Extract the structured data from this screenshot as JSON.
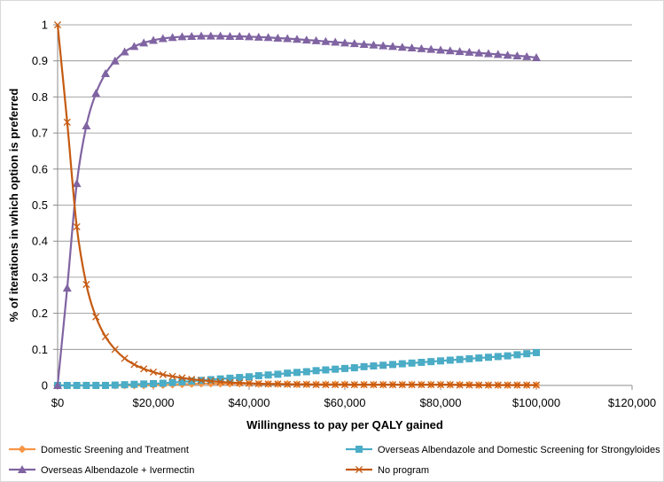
{
  "chart_data": {
    "type": "line",
    "title": "",
    "xlabel": "Willingness to pay per QALY gained",
    "ylabel": "% of iterations in which option is preferred",
    "xlim": [
      0,
      120000
    ],
    "ylim": [
      0,
      1
    ],
    "x_ticks": [
      0,
      20000,
      40000,
      60000,
      80000,
      100000,
      120000
    ],
    "x_tick_labels": [
      "$0",
      "$20,000",
      "$40,000",
      "$60,000",
      "$80,000",
      "$100,000",
      "$120,000"
    ],
    "y_ticks": [
      0,
      0.1,
      0.2,
      0.3,
      0.4,
      0.5,
      0.6,
      0.7,
      0.8,
      0.9,
      1
    ],
    "y_tick_labels": [
      "0",
      "0.1",
      "0.2",
      "0.3",
      "0.4",
      "0.5",
      "0.6",
      "0.7",
      "0.8",
      "0.9",
      "1"
    ],
    "grid": "horizontal",
    "legend_position": "bottom",
    "x": [
      0,
      2000,
      4000,
      6000,
      8000,
      10000,
      12000,
      14000,
      16000,
      18000,
      20000,
      22000,
      24000,
      26000,
      28000,
      30000,
      32000,
      34000,
      36000,
      38000,
      40000,
      42000,
      44000,
      46000,
      48000,
      50000,
      52000,
      54000,
      56000,
      58000,
      60000,
      62000,
      64000,
      66000,
      68000,
      70000,
      72000,
      74000,
      76000,
      78000,
      80000,
      82000,
      84000,
      86000,
      88000,
      90000,
      92000,
      94000,
      96000,
      98000,
      100000
    ],
    "series": [
      {
        "name": "Domestic Sreening and Treatment",
        "color": "#f79646",
        "marker": "diamond",
        "values": [
          0,
          0,
          0,
          0,
          0,
          0,
          0,
          0,
          0,
          0,
          0.001,
          0.001,
          0.002,
          0.003,
          0.004,
          0.005,
          0.005,
          0.005,
          0.005,
          0.005,
          0.005,
          0.004,
          0.004,
          0.004,
          0.004,
          0.003,
          0.003,
          0.003,
          0.003,
          0.003,
          0.003,
          0.002,
          0.002,
          0.002,
          0.002,
          0.002,
          0.002,
          0.002,
          0.002,
          0.002,
          0.002,
          0.002,
          0.002,
          0.002,
          0.001,
          0.001,
          0.001,
          0.001,
          0.001,
          0.001,
          0.001
        ]
      },
      {
        "name": "Overseas Albendazole and Domestic Screening for Strongyloides",
        "color": "#4bacc6",
        "marker": "square",
        "values": [
          0,
          0,
          0,
          0,
          0,
          0,
          0.001,
          0.002,
          0.003,
          0.004,
          0.005,
          0.006,
          0.008,
          0.01,
          0.012,
          0.014,
          0.016,
          0.018,
          0.02,
          0.022,
          0.024,
          0.027,
          0.029,
          0.031,
          0.034,
          0.036,
          0.038,
          0.041,
          0.043,
          0.045,
          0.047,
          0.049,
          0.052,
          0.054,
          0.056,
          0.058,
          0.06,
          0.062,
          0.064,
          0.066,
          0.068,
          0.07,
          0.072,
          0.074,
          0.076,
          0.078,
          0.08,
          0.082,
          0.085,
          0.088,
          0.091
        ]
      },
      {
        "name": "Overseas Albendazole + Ivermectin",
        "color": "#8064a2",
        "marker": "triangle",
        "values": [
          0,
          0.27,
          0.56,
          0.72,
          0.81,
          0.865,
          0.9,
          0.925,
          0.94,
          0.95,
          0.957,
          0.962,
          0.965,
          0.967,
          0.968,
          0.969,
          0.969,
          0.969,
          0.968,
          0.968,
          0.967,
          0.966,
          0.965,
          0.963,
          0.962,
          0.96,
          0.958,
          0.956,
          0.954,
          0.952,
          0.95,
          0.948,
          0.946,
          0.944,
          0.942,
          0.94,
          0.938,
          0.936,
          0.934,
          0.932,
          0.93,
          0.928,
          0.926,
          0.924,
          0.922,
          0.92,
          0.918,
          0.916,
          0.914,
          0.912,
          0.909
        ]
      },
      {
        "name": "No program",
        "color": "#c55a11",
        "marker": "x",
        "values": [
          1,
          0.73,
          0.44,
          0.28,
          0.19,
          0.135,
          0.1,
          0.075,
          0.058,
          0.046,
          0.037,
          0.03,
          0.025,
          0.021,
          0.017,
          0.014,
          0.012,
          0.01,
          0.008,
          0.007,
          0.006,
          0.005,
          0.004,
          0.004,
          0.003,
          0.003,
          0.003,
          0.002,
          0.002,
          0.002,
          0.002,
          0.002,
          0.002,
          0.002,
          0.002,
          0.002,
          0.002,
          0.002,
          0.002,
          0.002,
          0.002,
          0.002,
          0.001,
          0.001,
          0.001,
          0.001,
          0.001,
          0.001,
          0.001,
          0.001,
          0.001
        ]
      }
    ]
  }
}
